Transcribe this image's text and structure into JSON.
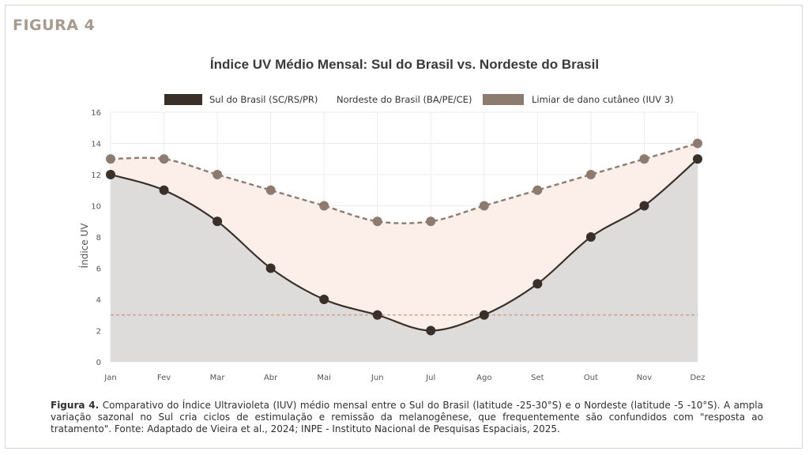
{
  "figure_label": "FIGURA 4",
  "caption": {
    "lead": "Figura 4.",
    "text": "Comparativo do Índice Ultravioleta (IUV) médio mensal entre o Sul do Brasil (latitude -25-30°S) e o Nordeste (latitude -5 -10°S). A ampla variação sazonal no Sul cria ciclos de estimulação e remissão da melanogênese, que frequentemente são confundidos com \"resposta ao tratamento\". Fonte: Adaptado de Vieira et al., 2024; INPE - Instituto Nacional de Pesquisas Espaciais, 2025."
  },
  "chart_data": {
    "type": "line",
    "title": "Índice UV Médio Mensal: Sul do Brasil vs. Nordeste do Brasil",
    "xlabel": "",
    "ylabel": "Índice UV",
    "categories": [
      "Jan",
      "Fev",
      "Mar",
      "Abr",
      "Mai",
      "Jun",
      "Jul",
      "Ago",
      "Set",
      "Out",
      "Nov",
      "Dez"
    ],
    "ylim": [
      0,
      16
    ],
    "yticks": [
      0,
      2,
      4,
      6,
      8,
      10,
      12,
      14,
      16
    ],
    "grid": true,
    "legend_position": "top-center",
    "series": [
      {
        "name": "Sul do Brasil (SC/RS/PR)",
        "values": [
          12,
          11,
          9,
          6,
          4,
          3,
          2,
          3,
          5,
          8,
          10,
          13
        ],
        "color": "#3a3029",
        "fill": "#dedcda",
        "line": "solid"
      },
      {
        "name": "Nordeste do Brasil (BA/PE/CE)",
        "values": [
          13,
          13,
          12,
          11,
          10,
          9,
          9,
          10,
          11,
          12,
          13,
          14
        ],
        "color": "#8e7b70",
        "fill": "#fcefea",
        "line": "dashed"
      },
      {
        "name": "Limiar de dano cutâneo (IUV 3)",
        "values": [
          3,
          3,
          3,
          3,
          3,
          3,
          3,
          3,
          3,
          3,
          3,
          3
        ],
        "color": "#c49a84",
        "line": "dashed"
      }
    ]
  }
}
